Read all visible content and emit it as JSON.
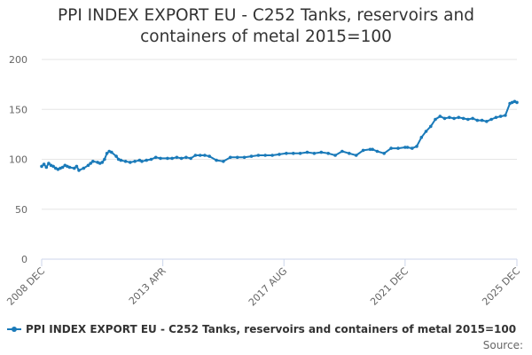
{
  "title_line1": "PPI INDEX EXPORT EU - C252 Tanks, reservoirs and",
  "title_line2": "containers of metal 2015=100",
  "legend_label": "PPI INDEX EXPORT EU - C252 Tanks, reservoirs and containers of metal 2015=100",
  "source_label": "Source:",
  "colors": {
    "series": "#1a7ab9",
    "grid": "#e6e6e6",
    "axis": "#ccd6eb"
  },
  "chart_data": {
    "type": "line",
    "title": "PPI INDEX EXPORT EU - C252 Tanks, reservoirs and containers of metal 2015=100",
    "xlabel": "",
    "ylabel": "",
    "ylim": [
      0,
      200
    ],
    "y_ticks": [
      0,
      50,
      100,
      150,
      200
    ],
    "x_range": [
      "2008-12",
      "2025-12"
    ],
    "x_ticks": [
      "2008 DEC",
      "2013 APR",
      "2017 AUG",
      "2021 DEC",
      "2025 DEC"
    ],
    "grid": true,
    "legend_position": "bottom",
    "series": [
      {
        "name": "PPI INDEX EXPORT EU - C252 Tanks, reservoirs and containers of metal 2015=100",
        "x": [
          "2008-12",
          "2009-01",
          "2009-02",
          "2009-03",
          "2009-04",
          "2009-05",
          "2009-06",
          "2009-07",
          "2009-08",
          "2009-09",
          "2009-10",
          "2009-11",
          "2009-12",
          "2010-02",
          "2010-03",
          "2010-04",
          "2010-06",
          "2010-08",
          "2010-09",
          "2010-10",
          "2010-12",
          "2011-01",
          "2011-02",
          "2011-03",
          "2011-04",
          "2011-05",
          "2011-06",
          "2011-08",
          "2011-09",
          "2011-10",
          "2011-12",
          "2012-02",
          "2012-04",
          "2012-06",
          "2012-07",
          "2012-09",
          "2012-11",
          "2013-01",
          "2013-03",
          "2013-06",
          "2013-08",
          "2013-10",
          "2013-12",
          "2014-02",
          "2014-04",
          "2014-06",
          "2014-08",
          "2014-10",
          "2014-12",
          "2015-03",
          "2015-06",
          "2015-09",
          "2015-12",
          "2016-03",
          "2016-06",
          "2016-09",
          "2016-12",
          "2017-03",
          "2017-06",
          "2017-09",
          "2017-12",
          "2018-03",
          "2018-06",
          "2018-09",
          "2018-12",
          "2019-03",
          "2019-06",
          "2019-09",
          "2019-12",
          "2020-03",
          "2020-06",
          "2020-09",
          "2020-10",
          "2020-12",
          "2021-03",
          "2021-06",
          "2021-09",
          "2021-12",
          "2022-01",
          "2022-03",
          "2022-05",
          "2022-07",
          "2022-09",
          "2022-11",
          "2023-01",
          "2023-03",
          "2023-05",
          "2023-07",
          "2023-09",
          "2023-11",
          "2024-01",
          "2024-03",
          "2024-05",
          "2024-07",
          "2024-09",
          "2024-11",
          "2025-01",
          "2025-03",
          "2025-05",
          "2025-07",
          "2025-09",
          "2025-10",
          "2025-11",
          "2025-12"
        ],
        "values": [
          93,
          95,
          92,
          96,
          94,
          93,
          91,
          90,
          91,
          92,
          94,
          93,
          92,
          91,
          93,
          89,
          91,
          94,
          96,
          98,
          97,
          96,
          97,
          100,
          106,
          108,
          107,
          103,
          100,
          99,
          98,
          97,
          98,
          99,
          98,
          99,
          100,
          102,
          101,
          101,
          101,
          102,
          101,
          102,
          101,
          104,
          104,
          104,
          103,
          99,
          98,
          102,
          102,
          102,
          103,
          104,
          104,
          104,
          105,
          106,
          106,
          106,
          107,
          106,
          107,
          106,
          104,
          108,
          106,
          104,
          109,
          110,
          110,
          108,
          106,
          111,
          111,
          112,
          112,
          111,
          113,
          122,
          128,
          133,
          140,
          143,
          141,
          142,
          141,
          142,
          141,
          140,
          141,
          139,
          139,
          138,
          140,
          142,
          143,
          144,
          156,
          157,
          158,
          157
        ]
      }
    ]
  }
}
